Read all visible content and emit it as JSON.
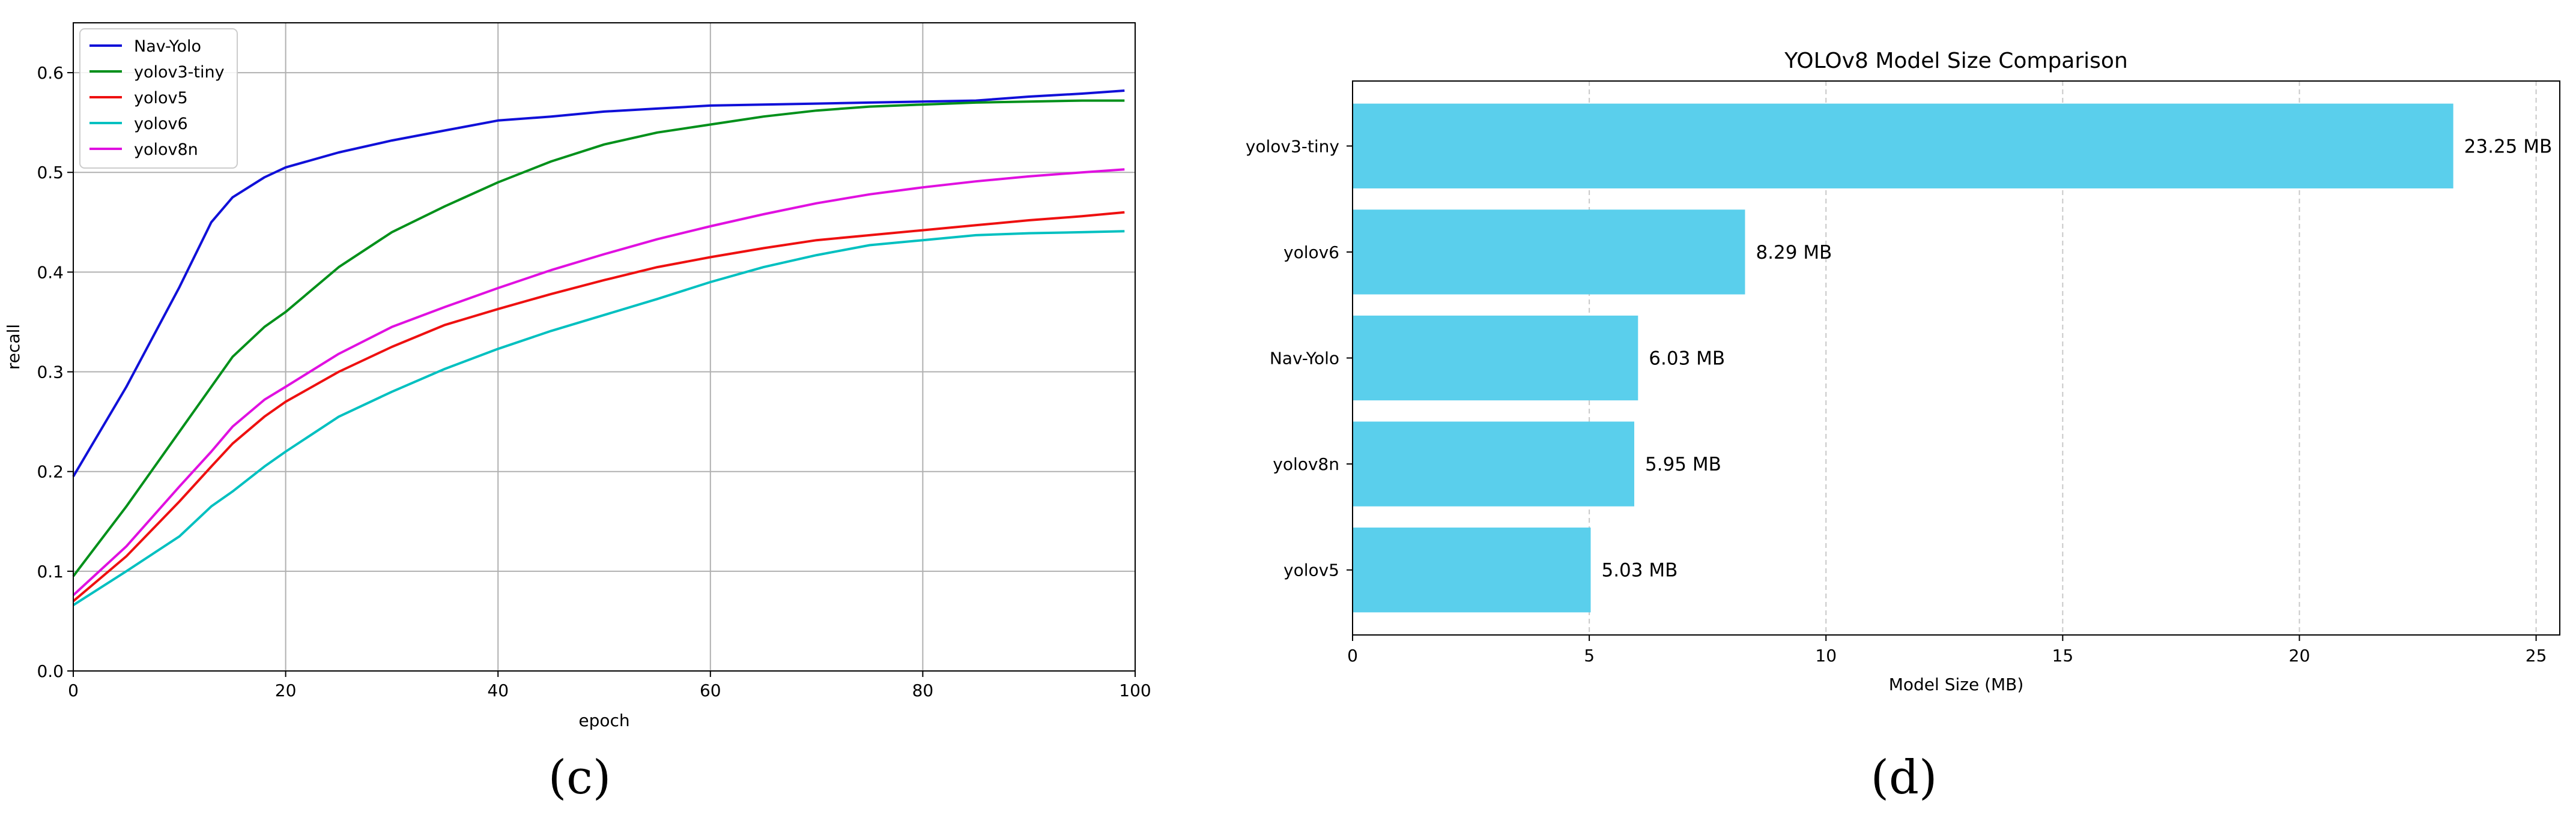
{
  "chart_data": [
    {
      "type": "line",
      "title": "",
      "xlabel": "epoch",
      "ylabel": "recall",
      "xlim": [
        0,
        100
      ],
      "ylim": [
        0,
        0.65
      ],
      "xticks": [
        0,
        20,
        40,
        60,
        80,
        100
      ],
      "yticks": [
        0.0,
        0.1,
        0.2,
        0.3,
        0.4,
        0.5,
        0.6
      ],
      "grid": true,
      "legend_position": "top-left",
      "x": [
        0,
        5,
        10,
        13,
        15,
        18,
        20,
        25,
        30,
        35,
        40,
        45,
        50,
        55,
        60,
        65,
        70,
        75,
        80,
        85,
        90,
        95,
        99
      ],
      "series": [
        {
          "name": "Nav-Yolo",
          "color": "#1010d8",
          "values": [
            0.195,
            0.285,
            0.385,
            0.45,
            0.475,
            0.495,
            0.505,
            0.52,
            0.532,
            0.542,
            0.552,
            0.556,
            0.561,
            0.564,
            0.567,
            0.568,
            0.569,
            0.57,
            0.571,
            0.572,
            0.576,
            0.579,
            0.582
          ]
        },
        {
          "name": "yolov3-tiny",
          "color": "#00901a",
          "values": [
            0.095,
            0.165,
            0.24,
            0.285,
            0.315,
            0.345,
            0.36,
            0.405,
            0.44,
            0.466,
            0.49,
            0.511,
            0.528,
            0.54,
            0.548,
            0.556,
            0.562,
            0.566,
            0.568,
            0.57,
            0.571,
            0.572,
            0.572
          ]
        },
        {
          "name": "yolov5",
          "color": "#ee1010",
          "values": [
            0.07,
            0.115,
            0.17,
            0.205,
            0.228,
            0.255,
            0.27,
            0.3,
            0.325,
            0.347,
            0.363,
            0.378,
            0.392,
            0.405,
            0.415,
            0.424,
            0.432,
            0.437,
            0.442,
            0.447,
            0.452,
            0.456,
            0.46
          ]
        },
        {
          "name": "yolov6",
          "color": "#00c0c0",
          "values": [
            0.066,
            0.1,
            0.135,
            0.165,
            0.18,
            0.205,
            0.22,
            0.255,
            0.28,
            0.303,
            0.323,
            0.341,
            0.357,
            0.373,
            0.39,
            0.405,
            0.417,
            0.427,
            0.432,
            0.437,
            0.439,
            0.44,
            0.441
          ]
        },
        {
          "name": "yolov8n",
          "color": "#e010e0",
          "values": [
            0.076,
            0.125,
            0.185,
            0.22,
            0.245,
            0.272,
            0.285,
            0.318,
            0.345,
            0.365,
            0.384,
            0.402,
            0.418,
            0.433,
            0.446,
            0.458,
            0.469,
            0.478,
            0.485,
            0.491,
            0.496,
            0.5,
            0.503
          ]
        }
      ],
      "panel_label": "(c)"
    },
    {
      "type": "bar",
      "orientation": "horizontal",
      "title": "YOLOv8 Model Size Comparison",
      "xlabel": "Model Size (MB)",
      "ylabel": "",
      "xlim": [
        0,
        25.5
      ],
      "xticks": [
        0,
        5,
        10,
        15,
        20,
        25
      ],
      "grid": "x-dashed",
      "bar_color": "#5acfec",
      "categories": [
        "yolov3-tiny",
        "yolov6",
        "Nav-Yolo",
        "yolov8n",
        "yolov5"
      ],
      "values": [
        23.25,
        8.29,
        6.03,
        5.95,
        5.03
      ],
      "value_labels": [
        "23.25 MB",
        "8.29 MB",
        "6.03 MB",
        "5.95 MB",
        "5.03 MB"
      ],
      "panel_label": "(d)"
    }
  ]
}
